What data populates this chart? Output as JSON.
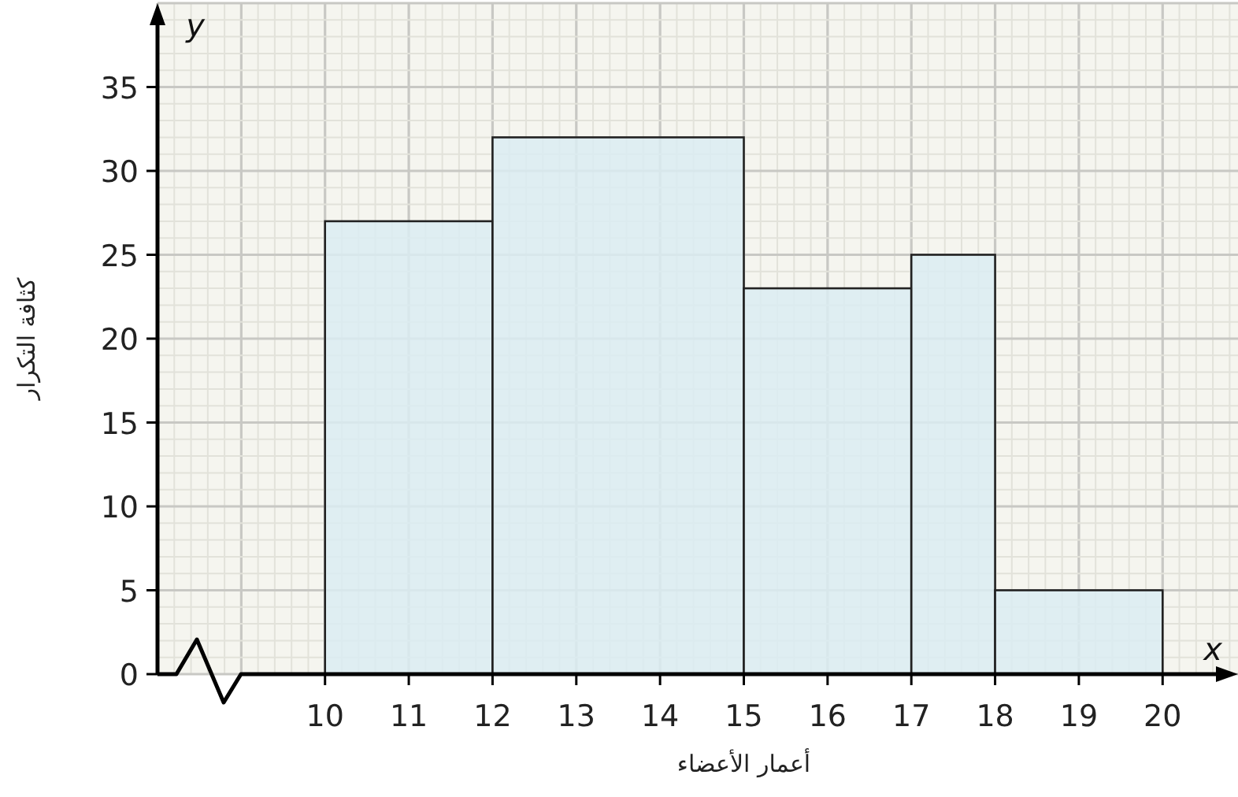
{
  "chart_data": {
    "type": "histogram",
    "xlabel": "أعمار الأعضاء",
    "ylabel": "كثافة التكرار",
    "bins": [
      10,
      12,
      15,
      17,
      18,
      20
    ],
    "values": [
      27,
      32,
      23,
      25,
      5
    ],
    "color": "#dbecf2",
    "xlim": [
      8,
      20.9
    ],
    "ylim": [
      0,
      40
    ],
    "xticks": [
      10,
      11,
      12,
      13,
      14,
      15,
      16,
      17,
      18,
      19,
      20
    ],
    "yticks": [
      0,
      5,
      10,
      15,
      20,
      25,
      30,
      35
    ],
    "grid": true,
    "annotations": [
      "x",
      "y"
    ]
  }
}
